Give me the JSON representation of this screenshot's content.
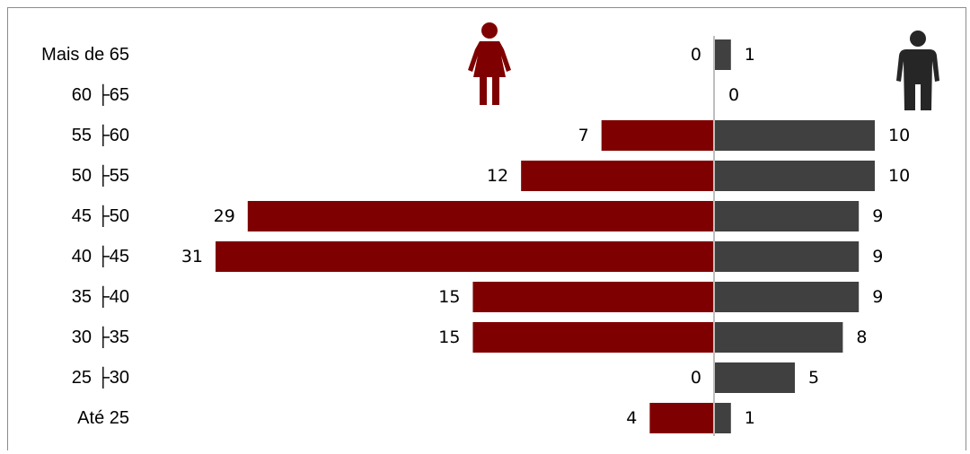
{
  "chart_data": {
    "type": "bar",
    "orientation": "horizontal",
    "layout": "population-pyramid",
    "categories": [
      "Mais de 65",
      "60 ├65",
      "55 ├60",
      "50 ├55",
      "45 ├50",
      "40 ├45",
      "35 ├40",
      "30 ├35",
      "25 ├30",
      "Até 25"
    ],
    "series": [
      {
        "values": [
          0,
          null,
          7,
          12,
          29,
          31,
          15,
          15,
          0,
          4
        ],
        "color": "#7f0000",
        "side": "left",
        "icon": "female-person-icon"
      },
      {
        "values": [
          1,
          0,
          10,
          10,
          9,
          9,
          9,
          8,
          5,
          1
        ],
        "color": "#404040",
        "side": "right",
        "icon": "male-person-icon"
      }
    ],
    "title": "",
    "xlabel": "",
    "ylabel": "",
    "grid": false,
    "legend": "icons at top"
  }
}
